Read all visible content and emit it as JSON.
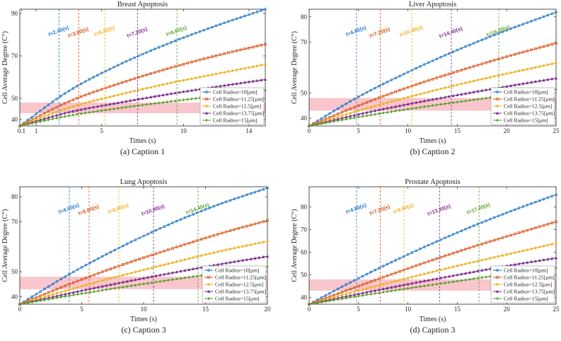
{
  "colors": [
    "#1f77c4",
    "#d95319",
    "#edb120",
    "#7e2f8e",
    "#5aa02c"
  ],
  "band_color": "#f8c6cc",
  "chart_data": [
    {
      "type": "line",
      "title": "Breast Apoptosis",
      "caption": "(a) Caption 1",
      "xlabel": "Times (s)",
      "ylabel": "Cell Average Degree (C°)",
      "xlim": [
        0,
        15
      ],
      "ylim": [
        37,
        92
      ],
      "xticks": [
        0.1,
        1,
        5,
        10,
        14
      ],
      "xtick_labels": [
        "0.1",
        "1",
        "5",
        "10",
        "14"
      ],
      "yticks": [
        40,
        50,
        70,
        90
      ],
      "band": [
        43,
        48
      ],
      "legend_position": "bottom-right",
      "series": [
        {
          "name": "Cell Radius=10[μm]",
          "marker": "circle",
          "x": [
            0,
            3,
            6,
            9,
            12,
            15
          ],
          "y": [
            37,
            53.5,
            65.6,
            75.6,
            84.2,
            92
          ],
          "annotation": {
            "text": "t=2.40(s)",
            "x": 2.4
          }
        },
        {
          "name": "Cell Radius=11.25[μm]",
          "marker": "square",
          "x": [
            0,
            3,
            6,
            9,
            12,
            15
          ],
          "y": [
            37,
            48.5,
            56.8,
            63.9,
            70.1,
            75.5
          ],
          "annotation": {
            "text": "t=3.60(s)",
            "x": 3.6
          }
        },
        {
          "name": "Cell Radius=12.5[μm]",
          "marker": "star",
          "x": [
            0,
            3,
            6,
            9,
            12,
            15
          ],
          "y": [
            37,
            45.6,
            51.6,
            56.9,
            61.5,
            66
          ],
          "annotation": {
            "text": "t=5.20(s)",
            "x": 5.2
          }
        },
        {
          "name": "Cell Radius=13.75[μm]",
          "marker": "triangle",
          "x": [
            0,
            3,
            6,
            9,
            12,
            15
          ],
          "y": [
            37,
            43.5,
            47.9,
            51.9,
            55.5,
            58.9
          ],
          "annotation": {
            "text": "t=7.20(s)",
            "x": 7.2
          }
        },
        {
          "name": "Cell Radius=15[μm]",
          "marker": "diamond",
          "x": [
            0,
            3,
            6,
            9,
            12,
            15
          ],
          "y": [
            37,
            41.8,
            45.3,
            48.3,
            51.1,
            53.8
          ],
          "annotation": {
            "text": "t=9.60(s)",
            "x": 9.6
          }
        }
      ]
    },
    {
      "type": "line",
      "title": "Liver Apoptosis",
      "caption": "(b) Caption 2",
      "xlabel": "Times (s)",
      "ylabel": "Cell Average Degree (C°)",
      "xlim": [
        0,
        25
      ],
      "ylim": [
        37,
        83
      ],
      "xticks": [
        0,
        5,
        10,
        15,
        20,
        25
      ],
      "xtick_labels": [
        "0",
        "5",
        "10",
        "15",
        "20",
        "25"
      ],
      "yticks": [
        40,
        50,
        70,
        80
      ],
      "band": [
        43,
        48
      ],
      "legend_position": "bottom-right",
      "series": [
        {
          "name": "Cell Radius=10[μm]",
          "marker": "circle",
          "x": [
            0,
            5,
            10,
            15,
            20,
            25
          ],
          "y": [
            37,
            48.5,
            58.2,
            66.9,
            74.7,
            81.8
          ],
          "annotation": {
            "text": "t=4.80(s)",
            "x": 4.8
          }
        },
        {
          "name": "Cell Radius=11.25[μm]",
          "marker": "square",
          "x": [
            0,
            5,
            10,
            15,
            20,
            25
          ],
          "y": [
            37,
            45,
            52.2,
            58.5,
            64.3,
            69.6
          ],
          "annotation": {
            "text": "t=7.20(s)",
            "x": 7.2
          }
        },
        {
          "name": "Cell Radius=12.5[μm]",
          "marker": "star",
          "x": [
            0,
            5,
            10,
            15,
            20,
            25
          ],
          "y": [
            37,
            43,
            48.3,
            53.2,
            57.6,
            61.8
          ],
          "annotation": {
            "text": "t=10.40(s)",
            "x": 10.4
          }
        },
        {
          "name": "Cell Radius=13.75[μm]",
          "marker": "triangle",
          "x": [
            0,
            5,
            10,
            15,
            20,
            25
          ],
          "y": [
            37,
            41.6,
            45.6,
            49.2,
            52.6,
            55.8
          ],
          "annotation": {
            "text": "t=14.40(s)",
            "x": 14.4
          }
        },
        {
          "name": "Cell Radius=15[μm]",
          "marker": "diamond",
          "x": [
            0,
            5,
            10,
            15,
            20,
            25
          ],
          "y": [
            37,
            40.5,
            43.6,
            46.4,
            49,
            51.4
          ],
          "annotation": {
            "text": "t=19.20(s)",
            "x": 19.2
          }
        }
      ]
    },
    {
      "type": "line",
      "title": "Lung Apoptosis",
      "caption": "(c) Caption 3",
      "xlabel": "Times (s)",
      "ylabel": "Cell Average Degree (C°)",
      "xlim": [
        0,
        20
      ],
      "ylim": [
        37,
        84
      ],
      "xticks": [
        0,
        5,
        10,
        15,
        20
      ],
      "xtick_labels": [
        "0",
        "5",
        "10",
        "15",
        "20"
      ],
      "yticks": [
        40,
        50,
        70,
        80
      ],
      "band": [
        43,
        48
      ],
      "legend_position": "bottom-right",
      "series": [
        {
          "name": "Cell Radius=10[μm]",
          "marker": "circle",
          "x": [
            0,
            4,
            8,
            12,
            16,
            20
          ],
          "y": [
            37,
            49,
            59.5,
            68.8,
            76.8,
            83.5
          ],
          "annotation": {
            "text": "t=4.00(s)",
            "x": 4.0
          }
        },
        {
          "name": "Cell Radius=11.25[μm]",
          "marker": "square",
          "x": [
            0,
            4,
            8,
            12,
            16,
            20
          ],
          "y": [
            37,
            45,
            52.3,
            58.8,
            65,
            70.5
          ],
          "annotation": {
            "text": "t=5.60(s)",
            "x": 5.6
          }
        },
        {
          "name": "Cell Radius=12.5[μm]",
          "marker": "star",
          "x": [
            0,
            4,
            8,
            12,
            16,
            20
          ],
          "y": [
            37,
            42.8,
            48.2,
            53.2,
            58,
            62.2
          ],
          "annotation": {
            "text": "t=8.00(s)",
            "x": 8.0
          }
        },
        {
          "name": "Cell Radius=13.75[μm]",
          "marker": "triangle",
          "x": [
            0,
            4,
            8,
            12,
            16,
            20
          ],
          "y": [
            37,
            41.4,
            45.5,
            49.3,
            52.9,
            56.2
          ],
          "annotation": {
            "text": "t=10.80(s)",
            "x": 10.8
          }
        },
        {
          "name": "Cell Radius=15[μm]",
          "marker": "diamond",
          "x": [
            0,
            4,
            8,
            12,
            16,
            20
          ],
          "y": [
            37,
            40.4,
            43.6,
            46.6,
            49.4,
            52
          ],
          "annotation": {
            "text": "t=14.40(s)",
            "x": 14.4
          }
        }
      ]
    },
    {
      "type": "line",
      "title": "Prostate Apoptosis",
      "caption": "(d) Caption 3",
      "xlabel": "Times (s)",
      "ylabel": "Cell Average Degree (C°)",
      "xlim": [
        0,
        25
      ],
      "ylim": [
        37,
        89
      ],
      "xticks": [
        0,
        5,
        10,
        15,
        20,
        25
      ],
      "xtick_labels": [
        "0",
        "5",
        "10",
        "15",
        "20",
        "25"
      ],
      "yticks": [
        40,
        50,
        60,
        70,
        80
      ],
      "band": [
        43,
        48
      ],
      "legend_position": "bottom-right",
      "series": [
        {
          "name": "Cell Radius=10[μm]",
          "marker": "circle",
          "x": [
            0,
            5,
            10,
            15,
            20,
            25
          ],
          "y": [
            37,
            48.5,
            59,
            68.7,
            77.5,
            85.5
          ],
          "annotation": {
            "text": "t=4.80(s)",
            "x": 4.8
          }
        },
        {
          "name": "Cell Radius=11.25[μm]",
          "marker": "square",
          "x": [
            0,
            5,
            10,
            15,
            20,
            25
          ],
          "y": [
            37,
            45,
            52.8,
            60.2,
            67,
            73.5
          ],
          "annotation": {
            "text": "t=7.20(s)",
            "x": 7.2
          }
        },
        {
          "name": "Cell Radius=12.5[μm]",
          "marker": "star",
          "x": [
            0,
            5,
            10,
            15,
            20,
            25
          ],
          "y": [
            37,
            43,
            48.6,
            54,
            59,
            64
          ],
          "annotation": {
            "text": "t=9.60(s)",
            "x": 9.6
          }
        },
        {
          "name": "Cell Radius=13.75[μm]",
          "marker": "triangle",
          "x": [
            0,
            5,
            10,
            15,
            20,
            25
          ],
          "y": [
            37,
            41.6,
            45.9,
            50,
            54,
            57.5
          ],
          "annotation": {
            "text": "t=13.20(s)",
            "x": 13.2
          }
        },
        {
          "name": "Cell Radius=15[μm]",
          "marker": "diamond",
          "x": [
            0,
            5,
            10,
            15,
            20,
            25
          ],
          "y": [
            37,
            40.6,
            44,
            47.2,
            50.3,
            53
          ],
          "annotation": {
            "text": "t=17.20(s)",
            "x": 17.2
          }
        }
      ]
    }
  ]
}
